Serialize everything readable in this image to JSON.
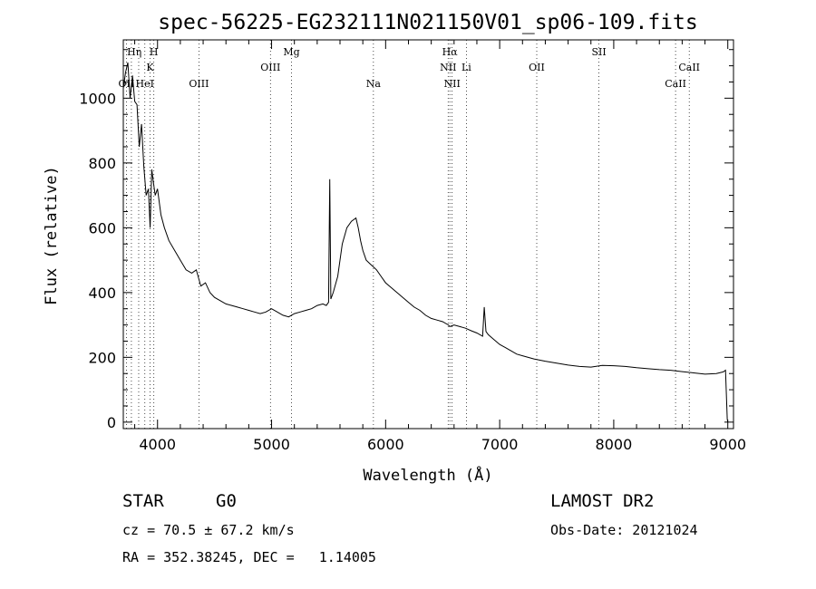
{
  "chart_data": {
    "type": "line",
    "title": "spec-56225-EG232111N021150V01_sp06-109.fits",
    "xlabel": "Wavelength (Å)",
    "ylabel": "Flux (relative)",
    "xlim": [
      3700,
      9050
    ],
    "ylim": [
      -20,
      1180
    ],
    "xticks": [
      4000,
      5000,
      6000,
      7000,
      8000,
      9000
    ],
    "yticks": [
      0,
      200,
      400,
      600,
      800,
      1000
    ],
    "series": [
      {
        "x": [
          3700,
          3720,
          3740,
          3760,
          3780,
          3800,
          3820,
          3840,
          3860,
          3880,
          3900,
          3920,
          3935,
          3950,
          3968,
          3980,
          4000,
          4030,
          4060,
          4100,
          4150,
          4200,
          4250,
          4300,
          4340,
          4380,
          4420,
          4460,
          4500,
          4550,
          4600,
          4650,
          4700,
          4750,
          4800,
          4850,
          4900,
          4950,
          5000,
          5050,
          5100,
          5150,
          5200,
          5250,
          5300,
          5350,
          5400,
          5450,
          5480,
          5500,
          5510,
          5520,
          5540,
          5580,
          5620,
          5660,
          5700,
          5740,
          5760,
          5780,
          5800,
          5830,
          5860,
          5890,
          5920,
          5960,
          6000,
          6050,
          6100,
          6150,
          6200,
          6250,
          6300,
          6350,
          6400,
          6450,
          6500,
          6550,
          6563,
          6600,
          6650,
          6700,
          6750,
          6800,
          6850,
          6865,
          6880,
          6900,
          6950,
          7000,
          7050,
          7100,
          7150,
          7200,
          7300,
          7400,
          7500,
          7600,
          7700,
          7800,
          7900,
          8000,
          8100,
          8200,
          8300,
          8400,
          8500,
          8600,
          8700,
          8800,
          8900,
          8960,
          8980,
          8995,
          9000
        ],
        "y": [
          1030,
          1080,
          1110,
          1000,
          1070,
          990,
          980,
          850,
          920,
          790,
          700,
          720,
          600,
          780,
          730,
          700,
          720,
          640,
          600,
          560,
          530,
          500,
          470,
          460,
          470,
          420,
          430,
          400,
          385,
          375,
          365,
          360,
          355,
          350,
          345,
          340,
          335,
          340,
          350,
          340,
          330,
          325,
          335,
          340,
          345,
          350,
          360,
          365,
          360,
          370,
          750,
          380,
          400,
          450,
          550,
          600,
          620,
          630,
          600,
          560,
          530,
          500,
          490,
          480,
          470,
          450,
          430,
          415,
          400,
          385,
          370,
          355,
          345,
          330,
          320,
          315,
          310,
          300,
          295,
          300,
          295,
          290,
          282,
          275,
          265,
          355,
          280,
          270,
          255,
          240,
          230,
          220,
          210,
          205,
          195,
          188,
          182,
          176,
          172,
          170,
          175,
          174,
          172,
          168,
          165,
          162,
          160,
          156,
          152,
          148,
          150,
          155,
          160,
          10,
          0
        ]
      }
    ],
    "spectral_lines": [
      {
        "name": "OII",
        "wave": 3727,
        "row": 3
      },
      {
        "name": "H",
        "wave": 3771,
        "row": 1
      },
      {
        "name": "η",
        "wave": 3835,
        "row": 1
      },
      {
        "name": "HeI",
        "wave": 3889,
        "row": 3
      },
      {
        "name": "K",
        "wave": 3934,
        "row": 2
      },
      {
        "name": "H",
        "wave": 3968,
        "row": 1
      },
      {
        "name": "OIII",
        "wave": 4363,
        "row": 3
      },
      {
        "name": "OIII",
        "wave": 4990,
        "row": 2
      },
      {
        "name": "Mg",
        "wave": 5175,
        "row": 1
      },
      {
        "name": "Na",
        "wave": 5893,
        "row": 3
      },
      {
        "name": "Hα",
        "wave": 6563,
        "row": 1
      },
      {
        "name": "NII",
        "wave": 6548,
        "row": 2
      },
      {
        "name": "NII",
        "wave": 6583,
        "row": 3
      },
      {
        "name": "Li",
        "wave": 6708,
        "row": 2
      },
      {
        "name": "OII",
        "wave": 7325,
        "row": 2
      },
      {
        "name": "SII",
        "wave": 7870,
        "row": 1
      },
      {
        "name": "CaII",
        "wave": 8662,
        "row": 2
      },
      {
        "name": "CaII",
        "wave": 8542,
        "row": 3
      }
    ]
  },
  "info": {
    "object_class": "STAR",
    "subclass": "G0",
    "survey": "LAMOST DR2",
    "velocity": "cz = 70.5 ± 67.2 km/s",
    "obs_date": "Obs-Date: 20121024",
    "coords": "RA = 352.38245, DEC =   1.14005"
  }
}
